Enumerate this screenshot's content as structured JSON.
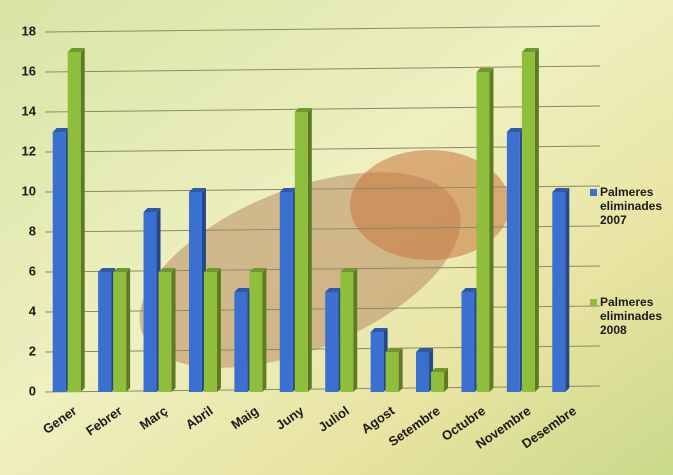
{
  "chart_data": {
    "type": "bar",
    "categories": [
      "Gener",
      "Febrer",
      "Març",
      "Abril",
      "Maig",
      "Juny",
      "Juliol",
      "Agost",
      "Setembre",
      "Octubre",
      "Novembre",
      "Desembre"
    ],
    "series": [
      {
        "name": "Palmeres eliminades 2007",
        "color": "#3b6fd0",
        "values": [
          13,
          6,
          9,
          10,
          5,
          10,
          5,
          3,
          2,
          5,
          13,
          10
        ]
      },
      {
        "name": "Palmeres eliminades 2008",
        "color": "#8fbd3c",
        "values": [
          17,
          6,
          6,
          6,
          6,
          14,
          6,
          2,
          1,
          16,
          17,
          null
        ]
      }
    ],
    "ylim": [
      0,
      18
    ],
    "yticks": [
      0,
      2,
      4,
      6,
      8,
      10,
      12,
      14,
      16,
      18
    ],
    "grid": true,
    "legend": "right"
  }
}
